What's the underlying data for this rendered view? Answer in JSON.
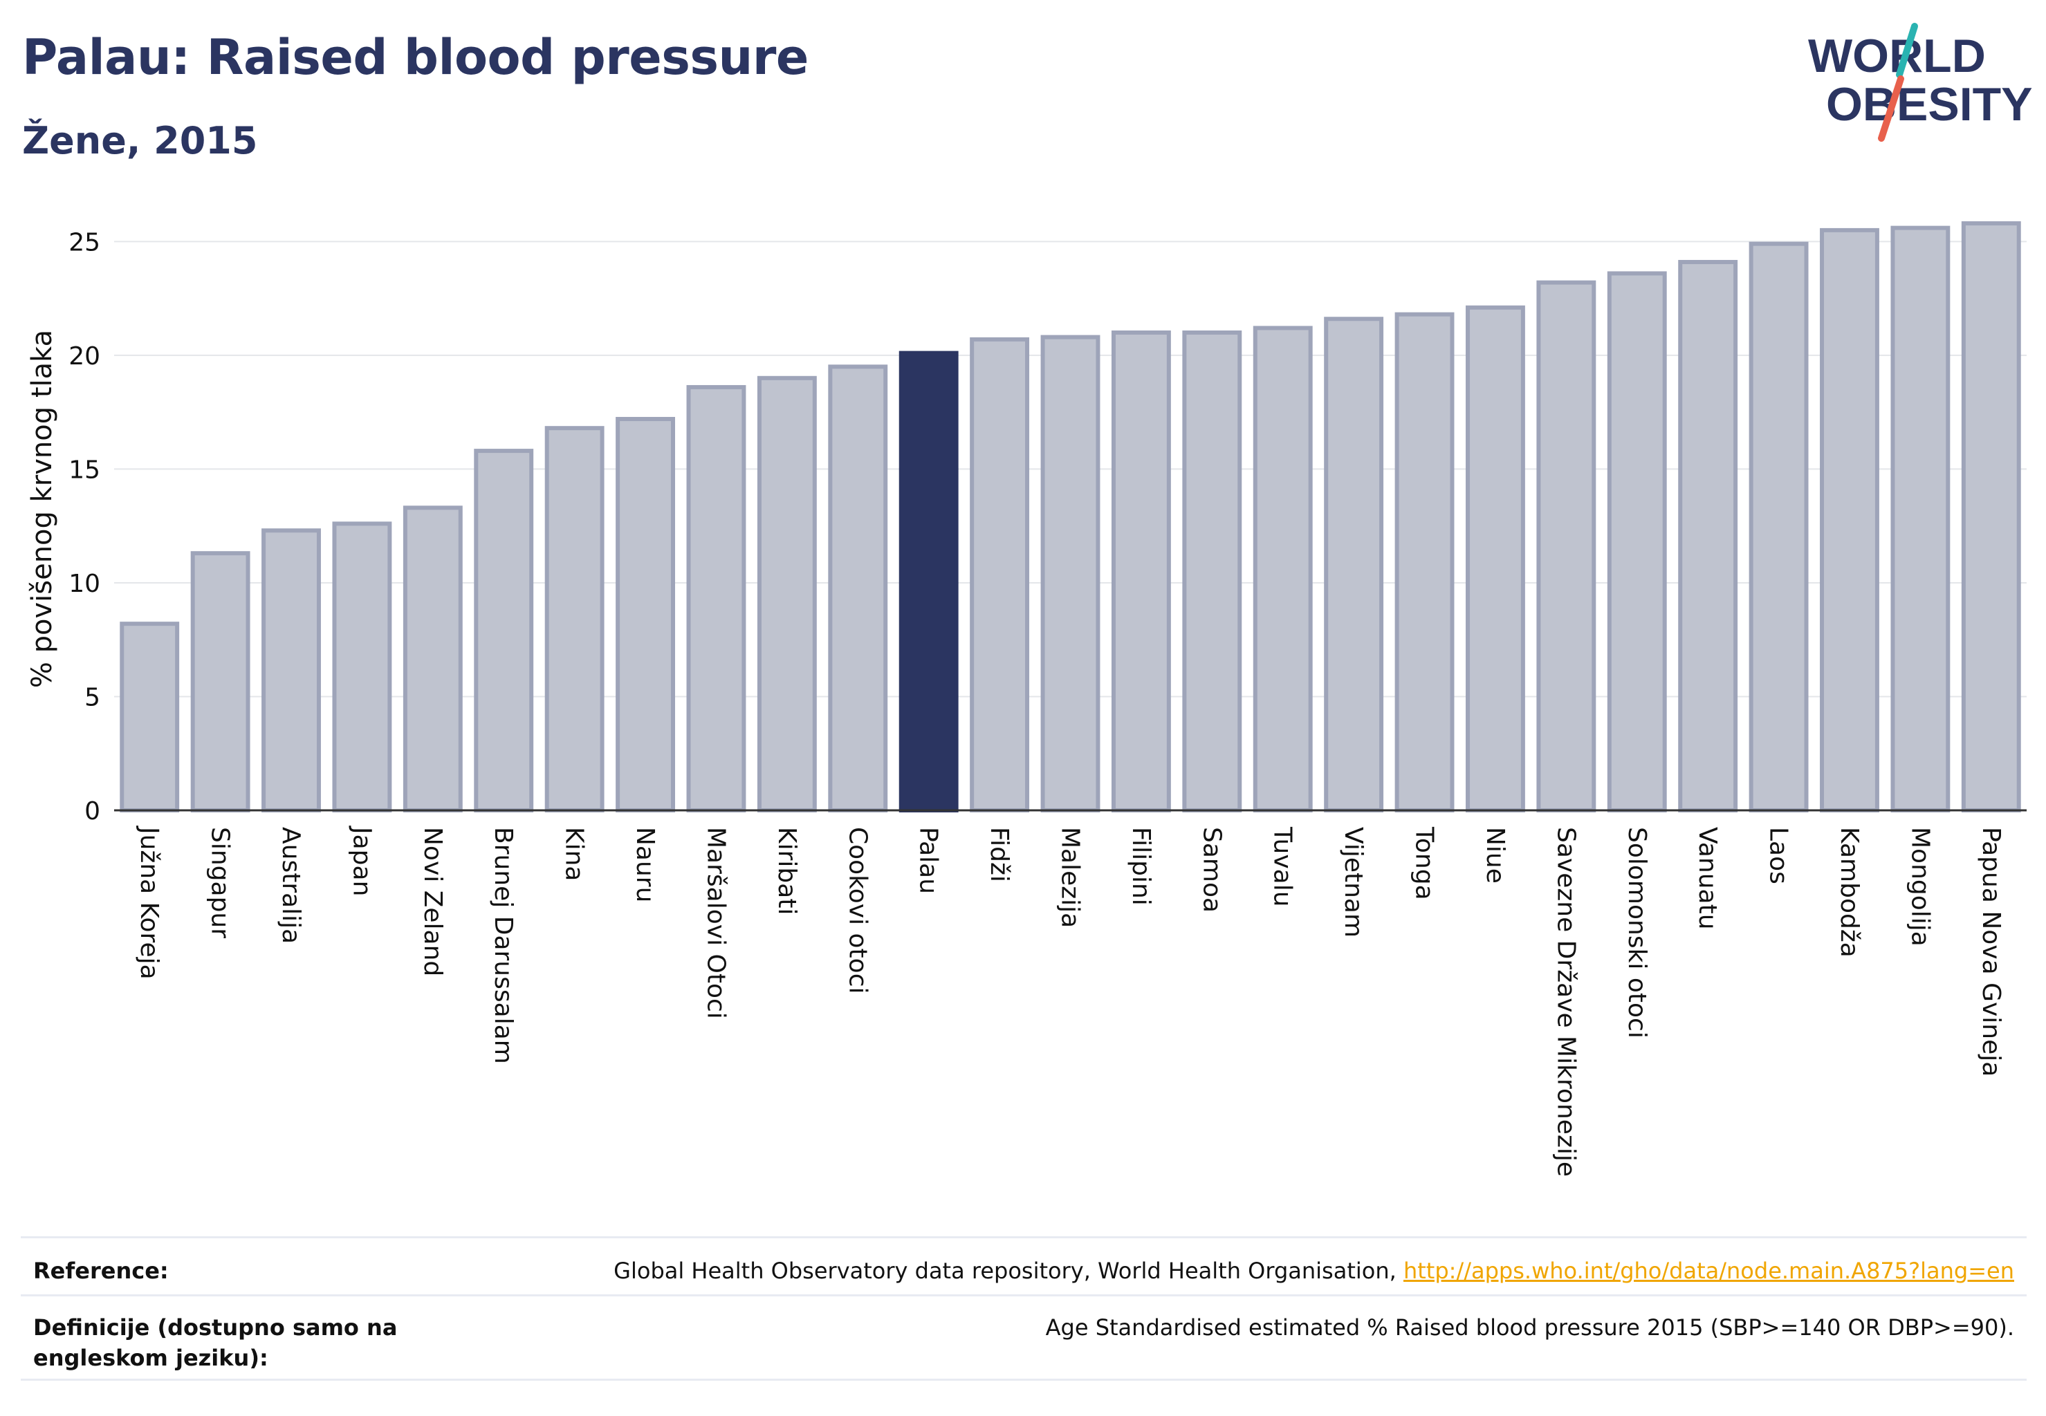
{
  "header": {
    "title": "Palau: Raised blood pressure",
    "subtitle": "Žene, 2015"
  },
  "logo": {
    "line1": "WORLD",
    "line2": "OBESITY",
    "accent_colors": [
      "#e8604c",
      "#2ab3b1"
    ]
  },
  "colors": {
    "highlight": "#2b3561",
    "bar_fill": "#bfc3cf",
    "bar_stroke": "#9ea4b9",
    "grid": "#e4e6ea",
    "text": "#111111"
  },
  "chart_data": {
    "type": "bar",
    "ylabel": "% povišenog krvnog tlaka",
    "ylim": [
      0,
      26.5
    ],
    "yticks": [
      0,
      5,
      10,
      15,
      20,
      25
    ],
    "grid": true,
    "highlight": "Palau",
    "categories": [
      "Južna Koreja",
      "Singapur",
      "Australija",
      "Japan",
      "Novi Zeland",
      "Brunej Darussalam",
      "Kina",
      "Nauru",
      "Maršalovi Otoci",
      "Kiribati",
      "Cookovi otoci",
      "Palau",
      "Fidži",
      "Malezija",
      "Filipini",
      "Samoa",
      "Tuvalu",
      "Vijetnam",
      "Tonga",
      "Niue",
      "Savezne Države Mikronezije",
      "Solomonski otoci",
      "Vanuatu",
      "Laos",
      "Kambodža",
      "Mongolija",
      "Papua Nova Gvineja"
    ],
    "values": [
      8.2,
      11.3,
      12.3,
      12.6,
      13.3,
      15.8,
      16.8,
      17.2,
      18.6,
      19.0,
      19.5,
      20.1,
      20.7,
      20.8,
      21.0,
      21.0,
      21.2,
      21.6,
      21.8,
      22.1,
      23.2,
      23.6,
      24.1,
      24.9,
      25.5,
      25.6,
      25.8
    ]
  },
  "reference": {
    "label": "Reference:",
    "text": "Global Health Observatory data repository, World Health Organisation, ",
    "link": "http://apps.who.int/gho/data/node.main.A875?lang=en"
  },
  "definition": {
    "label": "Definicije (dostupno samo na engleskom jeziku):",
    "text": "Age Standardised estimated % Raised blood pressure 2015 (SBP>=140 OR DBP>=90)."
  }
}
